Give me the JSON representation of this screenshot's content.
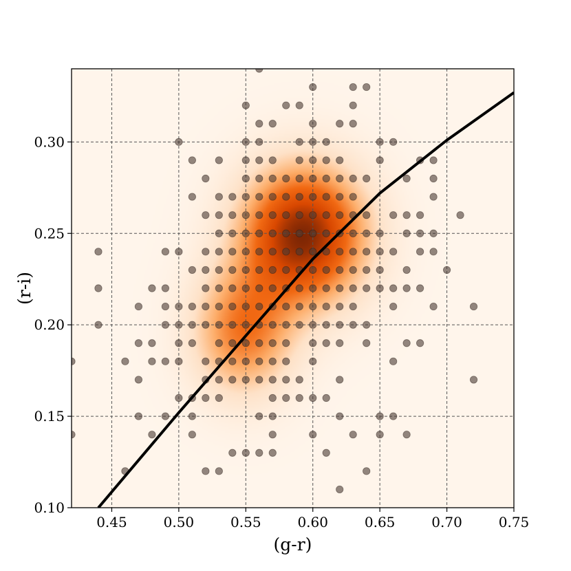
{
  "chart_data": {
    "type": "scatter",
    "xlabel": "(g-r)",
    "ylabel": "(r-i)",
    "xlim": [
      0.42,
      0.75
    ],
    "ylim": [
      0.1,
      0.34
    ],
    "xticks": [
      "0.45",
      "0.50",
      "0.55",
      "0.60",
      "0.65",
      "0.70",
      "0.75"
    ],
    "yticks": [
      "0.10",
      "0.15",
      "0.20",
      "0.25",
      "0.30"
    ],
    "grid": true,
    "background_density": {
      "type": "kde",
      "colormap": "Oranges",
      "peaks": [
        {
          "x": 0.593,
          "y": 0.249,
          "sx": 0.032,
          "sy": 0.026,
          "w": 1.0
        },
        {
          "x": 0.548,
          "y": 0.196,
          "sx": 0.026,
          "sy": 0.024,
          "w": 0.55
        }
      ]
    },
    "fit_line": {
      "color": "#000000",
      "points": [
        [
          0.44,
          0.1
        ],
        [
          0.47,
          0.126
        ],
        [
          0.5,
          0.152
        ],
        [
          0.55,
          0.194
        ],
        [
          0.6,
          0.236
        ],
        [
          0.65,
          0.272
        ],
        [
          0.7,
          0.301
        ],
        [
          0.75,
          0.327
        ]
      ]
    },
    "points": [
      [
        0.42,
        0.18
      ],
      [
        0.42,
        0.14
      ],
      [
        0.44,
        0.24
      ],
      [
        0.44,
        0.22
      ],
      [
        0.44,
        0.2
      ],
      [
        0.46,
        0.18
      ],
      [
        0.46,
        0.12
      ],
      [
        0.47,
        0.21
      ],
      [
        0.47,
        0.19
      ],
      [
        0.47,
        0.17
      ],
      [
        0.47,
        0.15
      ],
      [
        0.48,
        0.22
      ],
      [
        0.48,
        0.19
      ],
      [
        0.48,
        0.18
      ],
      [
        0.48,
        0.14
      ],
      [
        0.49,
        0.24
      ],
      [
        0.49,
        0.22
      ],
      [
        0.49,
        0.21
      ],
      [
        0.49,
        0.2
      ],
      [
        0.49,
        0.18
      ],
      [
        0.49,
        0.15
      ],
      [
        0.5,
        0.3
      ],
      [
        0.5,
        0.24
      ],
      [
        0.5,
        0.21
      ],
      [
        0.5,
        0.2
      ],
      [
        0.5,
        0.19
      ],
      [
        0.5,
        0.18
      ],
      [
        0.5,
        0.16
      ],
      [
        0.51,
        0.29
      ],
      [
        0.51,
        0.27
      ],
      [
        0.51,
        0.23
      ],
      [
        0.51,
        0.21
      ],
      [
        0.51,
        0.2
      ],
      [
        0.51,
        0.19
      ],
      [
        0.51,
        0.16
      ],
      [
        0.51,
        0.15
      ],
      [
        0.51,
        0.14
      ],
      [
        0.52,
        0.28
      ],
      [
        0.52,
        0.26
      ],
      [
        0.52,
        0.24
      ],
      [
        0.52,
        0.23
      ],
      [
        0.52,
        0.22
      ],
      [
        0.52,
        0.21
      ],
      [
        0.52,
        0.2
      ],
      [
        0.52,
        0.18
      ],
      [
        0.52,
        0.17
      ],
      [
        0.52,
        0.16
      ],
      [
        0.52,
        0.12
      ],
      [
        0.53,
        0.29
      ],
      [
        0.53,
        0.27
      ],
      [
        0.53,
        0.26
      ],
      [
        0.53,
        0.25
      ],
      [
        0.53,
        0.24
      ],
      [
        0.53,
        0.23
      ],
      [
        0.53,
        0.22
      ],
      [
        0.53,
        0.21
      ],
      [
        0.53,
        0.2
      ],
      [
        0.53,
        0.19
      ],
      [
        0.53,
        0.18
      ],
      [
        0.53,
        0.17
      ],
      [
        0.53,
        0.16
      ],
      [
        0.53,
        0.12
      ],
      [
        0.54,
        0.27
      ],
      [
        0.54,
        0.26
      ],
      [
        0.54,
        0.25
      ],
      [
        0.54,
        0.24
      ],
      [
        0.54,
        0.23
      ],
      [
        0.54,
        0.22
      ],
      [
        0.54,
        0.21
      ],
      [
        0.54,
        0.2
      ],
      [
        0.54,
        0.19
      ],
      [
        0.54,
        0.18
      ],
      [
        0.54,
        0.17
      ],
      [
        0.54,
        0.13
      ],
      [
        0.55,
        0.32
      ],
      [
        0.55,
        0.3
      ],
      [
        0.55,
        0.29
      ],
      [
        0.55,
        0.28
      ],
      [
        0.55,
        0.27
      ],
      [
        0.55,
        0.26
      ],
      [
        0.55,
        0.25
      ],
      [
        0.55,
        0.24
      ],
      [
        0.55,
        0.23
      ],
      [
        0.55,
        0.22
      ],
      [
        0.55,
        0.21
      ],
      [
        0.55,
        0.2
      ],
      [
        0.55,
        0.19
      ],
      [
        0.55,
        0.18
      ],
      [
        0.55,
        0.17
      ],
      [
        0.55,
        0.13
      ],
      [
        0.56,
        0.34
      ],
      [
        0.56,
        0.31
      ],
      [
        0.56,
        0.3
      ],
      [
        0.56,
        0.29
      ],
      [
        0.56,
        0.28
      ],
      [
        0.56,
        0.27
      ],
      [
        0.56,
        0.26
      ],
      [
        0.56,
        0.25
      ],
      [
        0.56,
        0.24
      ],
      [
        0.56,
        0.23
      ],
      [
        0.56,
        0.22
      ],
      [
        0.56,
        0.21
      ],
      [
        0.56,
        0.2
      ],
      [
        0.56,
        0.19
      ],
      [
        0.56,
        0.18
      ],
      [
        0.56,
        0.17
      ],
      [
        0.56,
        0.15
      ],
      [
        0.56,
        0.13
      ],
      [
        0.57,
        0.31
      ],
      [
        0.57,
        0.29
      ],
      [
        0.57,
        0.28
      ],
      [
        0.57,
        0.27
      ],
      [
        0.57,
        0.26
      ],
      [
        0.57,
        0.25
      ],
      [
        0.57,
        0.24
      ],
      [
        0.57,
        0.23
      ],
      [
        0.57,
        0.22
      ],
      [
        0.57,
        0.21
      ],
      [
        0.57,
        0.2
      ],
      [
        0.57,
        0.19
      ],
      [
        0.57,
        0.18
      ],
      [
        0.57,
        0.17
      ],
      [
        0.57,
        0.16
      ],
      [
        0.57,
        0.15
      ],
      [
        0.57,
        0.14
      ],
      [
        0.57,
        0.13
      ],
      [
        0.58,
        0.32
      ],
      [
        0.58,
        0.28
      ],
      [
        0.58,
        0.27
      ],
      [
        0.58,
        0.26
      ],
      [
        0.58,
        0.25
      ],
      [
        0.58,
        0.24
      ],
      [
        0.58,
        0.23
      ],
      [
        0.58,
        0.22
      ],
      [
        0.58,
        0.21
      ],
      [
        0.58,
        0.2
      ],
      [
        0.58,
        0.19
      ],
      [
        0.58,
        0.18
      ],
      [
        0.58,
        0.17
      ],
      [
        0.58,
        0.16
      ],
      [
        0.59,
        0.32
      ],
      [
        0.59,
        0.3
      ],
      [
        0.59,
        0.29
      ],
      [
        0.59,
        0.28
      ],
      [
        0.59,
        0.27
      ],
      [
        0.59,
        0.26
      ],
      [
        0.59,
        0.25
      ],
      [
        0.59,
        0.24
      ],
      [
        0.59,
        0.23
      ],
      [
        0.59,
        0.22
      ],
      [
        0.59,
        0.21
      ],
      [
        0.59,
        0.2
      ],
      [
        0.59,
        0.17
      ],
      [
        0.59,
        0.16
      ],
      [
        0.6,
        0.33
      ],
      [
        0.6,
        0.31
      ],
      [
        0.6,
        0.3
      ],
      [
        0.6,
        0.29
      ],
      [
        0.6,
        0.28
      ],
      [
        0.6,
        0.27
      ],
      [
        0.6,
        0.26
      ],
      [
        0.6,
        0.25
      ],
      [
        0.6,
        0.24
      ],
      [
        0.6,
        0.23
      ],
      [
        0.6,
        0.22
      ],
      [
        0.6,
        0.21
      ],
      [
        0.6,
        0.2
      ],
      [
        0.6,
        0.19
      ],
      [
        0.6,
        0.18
      ],
      [
        0.6,
        0.16
      ],
      [
        0.6,
        0.14
      ],
      [
        0.61,
        0.3
      ],
      [
        0.61,
        0.29
      ],
      [
        0.61,
        0.28
      ],
      [
        0.61,
        0.27
      ],
      [
        0.61,
        0.26
      ],
      [
        0.61,
        0.25
      ],
      [
        0.61,
        0.24
      ],
      [
        0.61,
        0.23
      ],
      [
        0.61,
        0.22
      ],
      [
        0.61,
        0.21
      ],
      [
        0.61,
        0.2
      ],
      [
        0.61,
        0.19
      ],
      [
        0.61,
        0.16
      ],
      [
        0.61,
        0.13
      ],
      [
        0.62,
        0.31
      ],
      [
        0.62,
        0.29
      ],
      [
        0.62,
        0.28
      ],
      [
        0.62,
        0.27
      ],
      [
        0.62,
        0.26
      ],
      [
        0.62,
        0.25
      ],
      [
        0.62,
        0.24
      ],
      [
        0.62,
        0.23
      ],
      [
        0.62,
        0.22
      ],
      [
        0.62,
        0.21
      ],
      [
        0.62,
        0.2
      ],
      [
        0.62,
        0.19
      ],
      [
        0.62,
        0.17
      ],
      [
        0.62,
        0.15
      ],
      [
        0.62,
        0.11
      ],
      [
        0.63,
        0.33
      ],
      [
        0.63,
        0.32
      ],
      [
        0.63,
        0.31
      ],
      [
        0.63,
        0.28
      ],
      [
        0.63,
        0.27
      ],
      [
        0.63,
        0.26
      ],
      [
        0.63,
        0.25
      ],
      [
        0.63,
        0.24
      ],
      [
        0.63,
        0.23
      ],
      [
        0.63,
        0.22
      ],
      [
        0.63,
        0.21
      ],
      [
        0.63,
        0.2
      ],
      [
        0.63,
        0.14
      ],
      [
        0.64,
        0.33
      ],
      [
        0.64,
        0.28
      ],
      [
        0.64,
        0.26
      ],
      [
        0.64,
        0.25
      ],
      [
        0.64,
        0.24
      ],
      [
        0.64,
        0.23
      ],
      [
        0.64,
        0.22
      ],
      [
        0.64,
        0.2
      ],
      [
        0.64,
        0.19
      ],
      [
        0.64,
        0.12
      ],
      [
        0.65,
        0.3
      ],
      [
        0.65,
        0.29
      ],
      [
        0.65,
        0.25
      ],
      [
        0.65,
        0.24
      ],
      [
        0.65,
        0.23
      ],
      [
        0.65,
        0.22
      ],
      [
        0.65,
        0.15
      ],
      [
        0.65,
        0.14
      ],
      [
        0.66,
        0.3
      ],
      [
        0.66,
        0.26
      ],
      [
        0.66,
        0.24
      ],
      [
        0.66,
        0.22
      ],
      [
        0.66,
        0.21
      ],
      [
        0.66,
        0.18
      ],
      [
        0.66,
        0.15
      ],
      [
        0.67,
        0.28
      ],
      [
        0.67,
        0.26
      ],
      [
        0.67,
        0.25
      ],
      [
        0.67,
        0.23
      ],
      [
        0.67,
        0.22
      ],
      [
        0.67,
        0.19
      ],
      [
        0.67,
        0.14
      ],
      [
        0.68,
        0.29
      ],
      [
        0.68,
        0.26
      ],
      [
        0.68,
        0.25
      ],
      [
        0.68,
        0.24
      ],
      [
        0.68,
        0.22
      ],
      [
        0.68,
        0.19
      ],
      [
        0.69,
        0.29
      ],
      [
        0.69,
        0.28
      ],
      [
        0.69,
        0.27
      ],
      [
        0.69,
        0.25
      ],
      [
        0.69,
        0.24
      ],
      [
        0.69,
        0.21
      ],
      [
        0.7,
        0.23
      ],
      [
        0.71,
        0.26
      ],
      [
        0.72,
        0.21
      ],
      [
        0.72,
        0.17
      ]
    ]
  }
}
